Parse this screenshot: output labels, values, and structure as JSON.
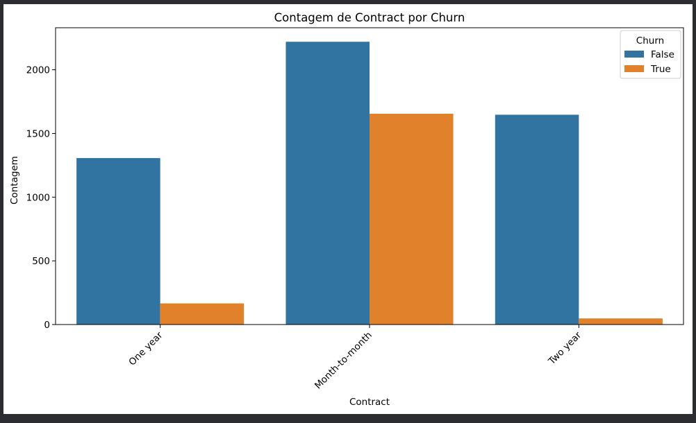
{
  "chart_data": {
    "type": "bar",
    "title": "Contagem de Contract por Churn",
    "xlabel": "Contract",
    "ylabel": "Contagem",
    "categories": [
      "One year",
      "Month-to-month",
      "Two year"
    ],
    "series": [
      {
        "name": "False",
        "values": [
          1307,
          2220,
          1647
        ],
        "color": "#3274a1"
      },
      {
        "name": "True",
        "values": [
          166,
          1655,
          48
        ],
        "color": "#e1812c"
      }
    ],
    "ylim": [
      0,
      2330
    ],
    "yticks": [
      0,
      500,
      1000,
      1500,
      2000
    ],
    "grid": false,
    "legend": {
      "title": "Churn",
      "position": "top-right"
    },
    "xtick_rotation": -45
  }
}
